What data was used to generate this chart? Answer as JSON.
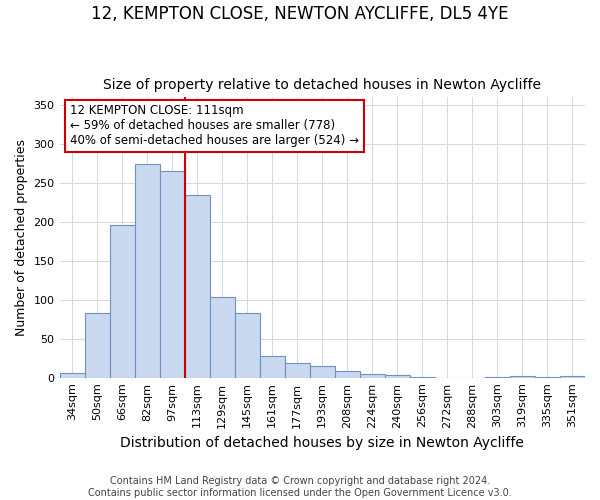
{
  "title": "12, KEMPTON CLOSE, NEWTON AYCLIFFE, DL5 4YE",
  "subtitle": "Size of property relative to detached houses in Newton Aycliffe",
  "xlabel": "Distribution of detached houses by size in Newton Aycliffe",
  "ylabel": "Number of detached properties",
  "categories": [
    "34sqm",
    "50sqm",
    "66sqm",
    "82sqm",
    "97sqm",
    "113sqm",
    "129sqm",
    "145sqm",
    "161sqm",
    "177sqm",
    "193sqm",
    "208sqm",
    "224sqm",
    "240sqm",
    "256sqm",
    "272sqm",
    "288sqm",
    "303sqm",
    "319sqm",
    "335sqm",
    "351sqm"
  ],
  "values": [
    6,
    83,
    196,
    275,
    265,
    235,
    104,
    83,
    28,
    19,
    15,
    9,
    5,
    3,
    1,
    0,
    0,
    1,
    2,
    1,
    2
  ],
  "bar_color": "#c9d9f0",
  "bar_edge_color": "#7090c0",
  "vline_color": "#cc0000",
  "vline_x_index": 5,
  "annotation_title": "12 KEMPTON CLOSE: 111sqm",
  "annotation_line1": "← 59% of detached houses are smaller (778)",
  "annotation_line2": "40% of semi-detached houses are larger (524) →",
  "annotation_box_color": "#ffffff",
  "annotation_box_edge_color": "#cc0000",
  "ylim": [
    0,
    360
  ],
  "yticks": [
    0,
    50,
    100,
    150,
    200,
    250,
    300,
    350
  ],
  "footer1": "Contains HM Land Registry data © Crown copyright and database right 2024.",
  "footer2": "Contains public sector information licensed under the Open Government Licence v3.0.",
  "title_fontsize": 12,
  "subtitle_fontsize": 10,
  "xlabel_fontsize": 10,
  "ylabel_fontsize": 9,
  "tick_fontsize": 8,
  "annotation_fontsize": 8.5,
  "footer_fontsize": 7,
  "background_color": "#ffffff",
  "plot_bg_color": "#ffffff",
  "grid_color": "#d0d8e8"
}
